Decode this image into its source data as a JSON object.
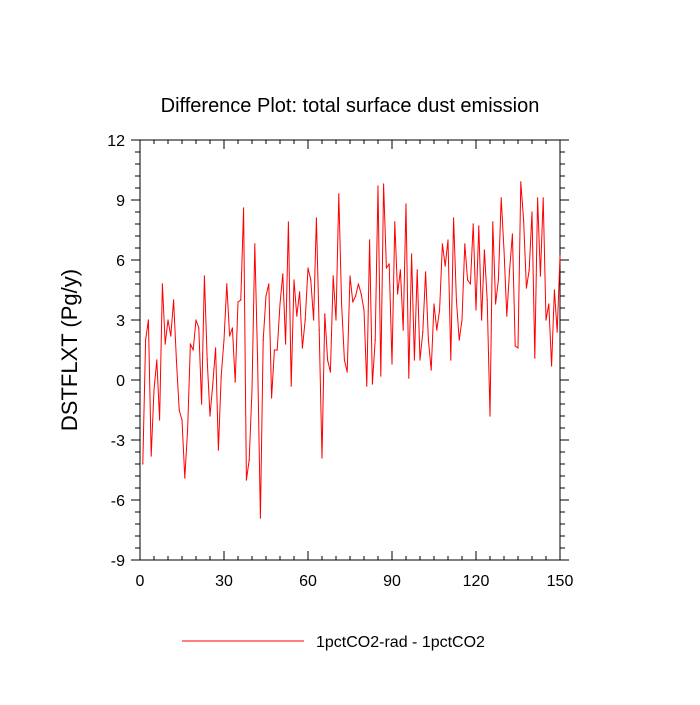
{
  "chart_data": {
    "type": "line",
    "title": "Difference Plot: total surface dust emission",
    "xlabel": "",
    "ylabel": "DSTFLXT  (Pg/y)",
    "xlim": [
      0,
      150
    ],
    "ylim": [
      -9,
      12
    ],
    "xticks": [
      0,
      30,
      60,
      90,
      120,
      150
    ],
    "xtick_labels": [
      "0",
      "30",
      "60",
      "90",
      "120",
      "150"
    ],
    "yticks": [
      -9,
      -6,
      -3,
      0,
      3,
      6,
      9,
      12
    ],
    "ytick_labels": [
      "-9",
      "-6",
      "-3",
      "0",
      "3",
      "6",
      "9",
      "12"
    ],
    "grid": false,
    "legend_position": "bottom-center",
    "series": [
      {
        "name": "1pctCO2-rad - 1pctCO2",
        "color": "#ff0000",
        "x": [
          1,
          2,
          3,
          4,
          5,
          6,
          7,
          8,
          9,
          10,
          11,
          12,
          13,
          14,
          15,
          16,
          17,
          18,
          19,
          20,
          21,
          22,
          23,
          24,
          25,
          26,
          27,
          28,
          29,
          30,
          31,
          32,
          33,
          34,
          35,
          36,
          37,
          38,
          39,
          40,
          41,
          42,
          43,
          44,
          45,
          46,
          47,
          48,
          49,
          50,
          51,
          52,
          53,
          54,
          55,
          56,
          57,
          58,
          59,
          60,
          61,
          62,
          63,
          64,
          65,
          66,
          67,
          68,
          69,
          70,
          71,
          72,
          73,
          74,
          75,
          76,
          77,
          78,
          79,
          80,
          81,
          82,
          83,
          84,
          85,
          86,
          87,
          88,
          89,
          90,
          91,
          92,
          93,
          94,
          95,
          96,
          97,
          98,
          99,
          100,
          101,
          102,
          103,
          104,
          105,
          106,
          107,
          108,
          109,
          110,
          111,
          112,
          113,
          114,
          115,
          116,
          117,
          118,
          119,
          120,
          121,
          122,
          123,
          124,
          125,
          126,
          127,
          128,
          129,
          130,
          131,
          132,
          133,
          134,
          135,
          136,
          137,
          138,
          139,
          140,
          141,
          142,
          143,
          144,
          145,
          146,
          147,
          148,
          149,
          150
        ],
        "y": [
          -4.2,
          2.0,
          3.0,
          -3.8,
          -0.5,
          1.0,
          -2.0,
          4.8,
          1.8,
          3.0,
          2.2,
          4.0,
          1.0,
          -1.5,
          -2.0,
          -4.9,
          -2.5,
          1.8,
          1.5,
          3.0,
          2.6,
          -1.2,
          5.2,
          1.0,
          -1.8,
          -0.2,
          1.6,
          -3.5,
          0.2,
          2.0,
          4.8,
          2.2,
          2.6,
          -0.1,
          3.9,
          4.0,
          8.6,
          -5.0,
          -4.0,
          -0.5,
          6.8,
          1.0,
          -6.9,
          2.0,
          4.2,
          4.8,
          -0.9,
          1.5,
          1.5,
          3.8,
          5.3,
          1.8,
          7.9,
          -0.3,
          5.0,
          3.2,
          4.4,
          1.6,
          3.0,
          5.6,
          5.0,
          3.0,
          8.1,
          2.5,
          -3.9,
          3.3,
          1.0,
          0.4,
          5.2,
          3.0,
          9.3,
          3.8,
          1.0,
          0.4,
          5.2,
          3.9,
          4.2,
          4.8,
          4.3,
          3.5,
          -0.3,
          7.0,
          -0.2,
          2.0,
          9.7,
          0.2,
          9.8,
          5.6,
          5.8,
          0.8,
          7.9,
          4.3,
          5.5,
          2.5,
          8.8,
          0.1,
          6.3,
          1.0,
          5.5,
          1.0,
          2.4,
          5.4,
          2.0,
          0.5,
          3.8,
          2.5,
          3.5,
          6.8,
          5.7,
          7.0,
          1.0,
          8.1,
          4.0,
          2.0,
          3.0,
          6.8,
          5.0,
          4.8,
          7.8,
          3.5,
          7.7,
          3.0,
          6.5,
          4.0,
          -1.8,
          7.9,
          3.8,
          5.0,
          9.1,
          6.5,
          3.2,
          5.5,
          7.3,
          1.7,
          1.6,
          9.9,
          8.0,
          4.6,
          5.5,
          8.4,
          1.1,
          9.1,
          5.2,
          9.1,
          3.0,
          3.8,
          0.7,
          4.5,
          2.4,
          6.2
        ]
      }
    ]
  }
}
